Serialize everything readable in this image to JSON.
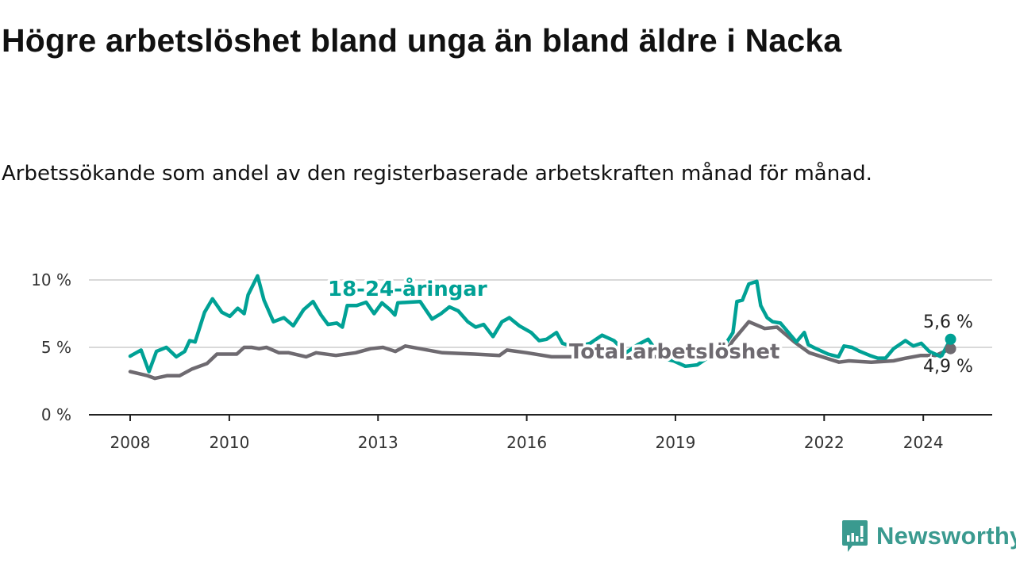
{
  "title": "Högre arbetslöshet bland unga än bland äldre i Nacka",
  "subtitle": "Arbetssökande som andel av den registerbaserade arbetskraften månad för månad.",
  "brand": {
    "name": "Newsworthy",
    "color": "#3a9a8f"
  },
  "chart_data": {
    "type": "line",
    "title": "Högre arbetslöshet bland unga än bland äldre i Nacka",
    "xlabel": "",
    "ylabel": "",
    "xlim": [
      2008,
      2025.3
    ],
    "ylim": [
      0,
      10
    ],
    "grid": true,
    "x_ticks": [
      2008,
      2010,
      2013,
      2016,
      2019,
      2022,
      2024
    ],
    "x_tick_labels": [
      "2008",
      "2010",
      "2013",
      "2016",
      "2019",
      "2022",
      "2024"
    ],
    "y_ticks": [
      0,
      5,
      10
    ],
    "y_tick_labels": [
      "0 %",
      "5 %",
      "10 %"
    ],
    "series": [
      {
        "name": "18-24-åringar",
        "color": "#00a195",
        "end_label": "5,6 %",
        "points": [
          [
            2008.0,
            4.35
          ],
          [
            2008.22,
            4.8
          ],
          [
            2008.38,
            3.2
          ],
          [
            2008.53,
            4.7
          ],
          [
            2008.73,
            5.0
          ],
          [
            2008.93,
            4.3
          ],
          [
            2009.1,
            4.7
          ],
          [
            2009.2,
            5.5
          ],
          [
            2009.31,
            5.4
          ],
          [
            2009.5,
            7.6
          ],
          [
            2009.66,
            8.6
          ],
          [
            2009.85,
            7.6
          ],
          [
            2010.01,
            7.3
          ],
          [
            2010.17,
            7.9
          ],
          [
            2010.3,
            7.5
          ],
          [
            2010.38,
            8.9
          ],
          [
            2010.57,
            10.3
          ],
          [
            2010.7,
            8.5
          ],
          [
            2010.89,
            6.9
          ],
          [
            2011.1,
            7.2
          ],
          [
            2011.29,
            6.6
          ],
          [
            2011.5,
            7.8
          ],
          [
            2011.69,
            8.4
          ],
          [
            2011.85,
            7.4
          ],
          [
            2011.99,
            6.7
          ],
          [
            2012.17,
            6.8
          ],
          [
            2012.28,
            6.5
          ],
          [
            2012.38,
            8.1
          ],
          [
            2012.57,
            8.1
          ],
          [
            2012.76,
            8.35
          ],
          [
            2012.92,
            7.5
          ],
          [
            2013.08,
            8.3
          ],
          [
            2013.24,
            7.8
          ],
          [
            2013.34,
            7.4
          ],
          [
            2013.4,
            8.3
          ],
          [
            2013.85,
            8.4
          ],
          [
            2014.09,
            7.1
          ],
          [
            2014.27,
            7.5
          ],
          [
            2014.44,
            8.0
          ],
          [
            2014.62,
            7.7
          ],
          [
            2014.81,
            6.9
          ],
          [
            2014.97,
            6.5
          ],
          [
            2015.13,
            6.7
          ],
          [
            2015.32,
            5.8
          ],
          [
            2015.5,
            6.9
          ],
          [
            2015.65,
            7.2
          ],
          [
            2015.85,
            6.6
          ],
          [
            2016.09,
            6.1
          ],
          [
            2016.25,
            5.5
          ],
          [
            2016.4,
            5.6
          ],
          [
            2016.6,
            6.1
          ],
          [
            2016.72,
            5.3
          ],
          [
            2016.96,
            5.0
          ],
          [
            2017.28,
            5.3
          ],
          [
            2017.52,
            5.9
          ],
          [
            2017.76,
            5.5
          ],
          [
            2018.0,
            4.6
          ],
          [
            2018.24,
            5.2
          ],
          [
            2018.45,
            5.6
          ],
          [
            2018.72,
            4.2
          ],
          [
            2018.96,
            4.0
          ],
          [
            2019.2,
            3.6
          ],
          [
            2019.44,
            3.7
          ],
          [
            2019.68,
            4.3
          ],
          [
            2019.95,
            4.9
          ],
          [
            2020.16,
            6.1
          ],
          [
            2020.24,
            8.4
          ],
          [
            2020.35,
            8.5
          ],
          [
            2020.48,
            9.7
          ],
          [
            2020.64,
            9.9
          ],
          [
            2020.72,
            8.1
          ],
          [
            2020.85,
            7.2
          ],
          [
            2020.96,
            6.9
          ],
          [
            2021.12,
            6.8
          ],
          [
            2021.28,
            6.1
          ],
          [
            2021.44,
            5.4
          ],
          [
            2021.6,
            6.1
          ],
          [
            2021.68,
            5.2
          ],
          [
            2021.84,
            4.9
          ],
          [
            2022.08,
            4.5
          ],
          [
            2022.29,
            4.3
          ],
          [
            2022.4,
            5.1
          ],
          [
            2022.56,
            5.0
          ],
          [
            2022.72,
            4.7
          ],
          [
            2022.92,
            4.4
          ],
          [
            2023.08,
            4.2
          ],
          [
            2023.24,
            4.2
          ],
          [
            2023.4,
            4.9
          ],
          [
            2023.64,
            5.5
          ],
          [
            2023.8,
            5.1
          ],
          [
            2023.96,
            5.3
          ],
          [
            2024.12,
            4.7
          ],
          [
            2024.36,
            4.3
          ],
          [
            2024.55,
            5.6
          ]
        ]
      },
      {
        "name": "Total arbetslöshet",
        "color": "#6e6a70",
        "end_label": "4,9 %",
        "points": [
          [
            2008.0,
            3.2
          ],
          [
            2008.35,
            2.9
          ],
          [
            2008.5,
            2.7
          ],
          [
            2008.75,
            2.9
          ],
          [
            2009.0,
            2.9
          ],
          [
            2009.25,
            3.4
          ],
          [
            2009.55,
            3.8
          ],
          [
            2009.75,
            4.5
          ],
          [
            2010.0,
            4.5
          ],
          [
            2010.15,
            4.5
          ],
          [
            2010.3,
            5.0
          ],
          [
            2010.45,
            5.0
          ],
          [
            2010.6,
            4.9
          ],
          [
            2010.75,
            5.0
          ],
          [
            2011.0,
            4.6
          ],
          [
            2011.2,
            4.6
          ],
          [
            2011.55,
            4.3
          ],
          [
            2011.75,
            4.6
          ],
          [
            2012.15,
            4.4
          ],
          [
            2012.55,
            4.6
          ],
          [
            2012.85,
            4.9
          ],
          [
            2013.1,
            5.0
          ],
          [
            2013.35,
            4.7
          ],
          [
            2013.55,
            5.1
          ],
          [
            2013.85,
            4.9
          ],
          [
            2014.3,
            4.6
          ],
          [
            2014.95,
            4.5
          ],
          [
            2015.45,
            4.4
          ],
          [
            2015.6,
            4.8
          ],
          [
            2016.0,
            4.6
          ],
          [
            2016.5,
            4.3
          ],
          [
            2017.0,
            4.3
          ],
          [
            2017.5,
            4.3
          ],
          [
            2018.0,
            4.2
          ],
          [
            2018.5,
            4.3
          ],
          [
            2019.0,
            4.3
          ],
          [
            2019.5,
            4.2
          ],
          [
            2020.0,
            4.6
          ],
          [
            2020.16,
            5.5
          ],
          [
            2020.48,
            6.9
          ],
          [
            2020.8,
            6.4
          ],
          [
            2021.05,
            6.5
          ],
          [
            2021.4,
            5.4
          ],
          [
            2021.7,
            4.6
          ],
          [
            2022.3,
            3.9
          ],
          [
            2022.5,
            4.0
          ],
          [
            2022.95,
            3.9
          ],
          [
            2023.4,
            4.0
          ],
          [
            2023.65,
            4.2
          ],
          [
            2023.95,
            4.4
          ],
          [
            2024.25,
            4.4
          ],
          [
            2024.55,
            4.9
          ]
        ]
      }
    ],
    "annotations": [
      "18-24-åringar",
      "Total arbetslöshet"
    ]
  }
}
